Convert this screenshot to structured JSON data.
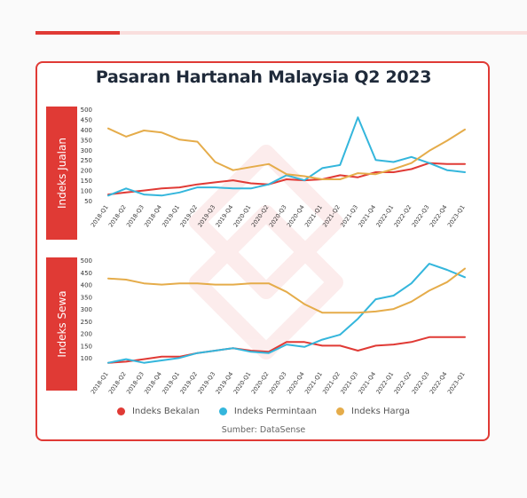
{
  "header": {
    "title": "Pasaran Hartanah Malaysia Q2 2023"
  },
  "colors": {
    "accent": "#e03a35",
    "supply": "#e03a35",
    "demand": "#34b6dc",
    "price": "#e5ac4a"
  },
  "chart_data": [
    {
      "type": "line",
      "sidebar_label": "Indeks Jualan",
      "ylim": [
        50,
        500
      ],
      "yticks": [
        50,
        100,
        150,
        200,
        250,
        300,
        350,
        400,
        450,
        500
      ],
      "x": [
        "2018-Q1",
        "2018-Q2",
        "2018-Q3",
        "2018-Q4",
        "2019-Q1",
        "2019-Q2",
        "2019-Q3",
        "2019-Q4",
        "2020-Q1",
        "2020-Q2",
        "2020-Q3",
        "2020-Q4",
        "2021-Q1",
        "2021-Q2",
        "2021-Q3",
        "2021-Q4",
        "2022-Q1",
        "2022-Q2",
        "2022-Q3",
        "2022-Q4",
        "2023-Q1"
      ],
      "series": [
        {
          "name": "Indeks Bekalan",
          "color": "#e03a35",
          "values": [
            80,
            90,
            100,
            110,
            115,
            130,
            140,
            150,
            135,
            130,
            155,
            150,
            155,
            175,
            165,
            190,
            190,
            205,
            235,
            230,
            230
          ]
        },
        {
          "name": "Indeks Permintaan",
          "color": "#34b6dc",
          "values": [
            75,
            110,
            80,
            75,
            90,
            115,
            115,
            110,
            110,
            130,
            175,
            150,
            210,
            225,
            460,
            250,
            240,
            265,
            235,
            200,
            190
          ]
        },
        {
          "name": "Indeks Harga",
          "color": "#e5ac4a",
          "values": [
            405,
            365,
            395,
            385,
            350,
            340,
            240,
            200,
            215,
            230,
            180,
            170,
            155,
            155,
            185,
            180,
            205,
            235,
            295,
            345,
            400
          ]
        }
      ]
    },
    {
      "type": "line",
      "sidebar_label": "Indeks Sewa",
      "ylim": [
        50,
        500
      ],
      "yticks": [
        100,
        150,
        200,
        250,
        300,
        350,
        400,
        450,
        500
      ],
      "x": [
        "2018-Q1",
        "2018-Q2",
        "2018-Q3",
        "2018-Q4",
        "2019-Q1",
        "2019-Q2",
        "2019-Q3",
        "2019-Q4",
        "2020-Q1",
        "2020-Q2",
        "2020-Q3",
        "2020-Q4",
        "2021-Q1",
        "2021-Q2",
        "2021-Q3",
        "2021-Q4",
        "2022-Q1",
        "2022-Q2",
        "2022-Q3",
        "2022-Q4",
        "2023-Q1"
      ],
      "series": [
        {
          "name": "Indeks Bekalan",
          "color": "#e03a35",
          "values": [
            80,
            85,
            95,
            105,
            105,
            120,
            130,
            140,
            130,
            125,
            165,
            165,
            150,
            150,
            130,
            150,
            155,
            165,
            185,
            185,
            185
          ]
        },
        {
          "name": "Indeks Permintaan",
          "color": "#34b6dc",
          "values": [
            80,
            95,
            80,
            90,
            100,
            120,
            130,
            140,
            125,
            120,
            155,
            145,
            175,
            195,
            260,
            340,
            355,
            405,
            485,
            460,
            430
          ]
        },
        {
          "name": "Indeks Harga",
          "color": "#e5ac4a",
          "values": [
            425,
            420,
            405,
            400,
            405,
            405,
            400,
            400,
            405,
            405,
            370,
            320,
            285,
            285,
            285,
            290,
            300,
            330,
            375,
            410,
            465
          ]
        }
      ]
    }
  ],
  "legend": [
    {
      "label": "Indeks Bekalan",
      "color": "#e03a35"
    },
    {
      "label": "Indeks Permintaan",
      "color": "#34b6dc"
    },
    {
      "label": "Indeks Harga",
      "color": "#e5ac4a"
    }
  ],
  "source": "Sumber: DataSense"
}
